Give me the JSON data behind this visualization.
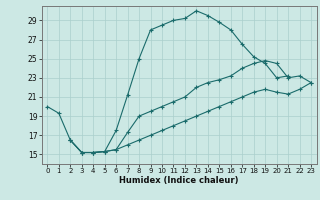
{
  "xlabel": "Humidex (Indice chaleur)",
  "bg_color": "#cce8e4",
  "grid_color": "#aacfcc",
  "line_color": "#1a6b6b",
  "xlim": [
    -0.5,
    23.5
  ],
  "ylim": [
    14.0,
    30.5
  ],
  "xticks": [
    0,
    1,
    2,
    3,
    4,
    5,
    6,
    7,
    8,
    9,
    10,
    11,
    12,
    13,
    14,
    15,
    16,
    17,
    18,
    19,
    20,
    21,
    22,
    23
  ],
  "yticks": [
    15,
    17,
    19,
    21,
    23,
    25,
    27,
    29
  ],
  "line1_x": [
    0,
    1,
    2,
    3,
    4,
    5,
    6,
    7,
    8,
    9,
    10,
    11,
    12,
    13,
    14,
    15,
    16,
    17,
    18,
    19,
    20,
    21
  ],
  "line1_y": [
    20.0,
    19.3,
    16.5,
    15.2,
    15.2,
    15.3,
    17.5,
    21.2,
    25.0,
    28.0,
    28.5,
    29.0,
    29.2,
    30.0,
    29.5,
    28.8,
    28.0,
    26.5,
    25.2,
    24.5,
    23.0,
    23.2
  ],
  "line2_x": [
    2,
    3,
    4,
    5,
    6,
    7,
    8,
    9,
    10,
    11,
    12,
    13,
    14,
    15,
    16,
    17,
    18,
    19,
    20,
    21,
    22,
    23
  ],
  "line2_y": [
    16.5,
    15.2,
    15.2,
    15.3,
    15.5,
    17.3,
    19.0,
    19.5,
    20.0,
    20.5,
    21.0,
    22.0,
    22.5,
    22.8,
    23.2,
    24.0,
    24.5,
    24.8,
    24.5,
    23.0,
    23.2,
    22.5
  ],
  "line3_x": [
    2,
    3,
    4,
    5,
    6,
    7,
    8,
    9,
    10,
    11,
    12,
    13,
    14,
    15,
    16,
    17,
    18,
    19,
    20,
    21,
    22,
    23
  ],
  "line3_y": [
    16.5,
    15.2,
    15.2,
    15.3,
    15.5,
    16.0,
    16.5,
    17.0,
    17.5,
    18.0,
    18.5,
    19.0,
    19.5,
    20.0,
    20.5,
    21.0,
    21.5,
    21.8,
    21.5,
    21.3,
    21.8,
    22.5
  ]
}
